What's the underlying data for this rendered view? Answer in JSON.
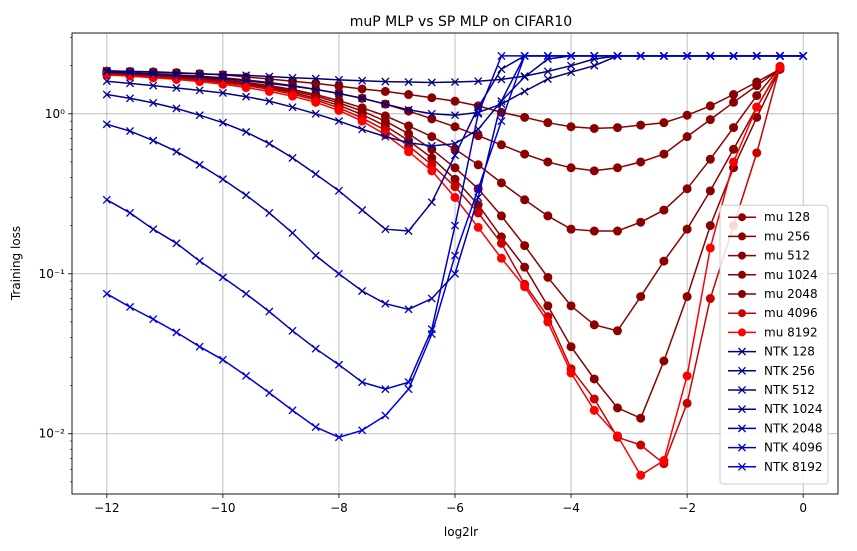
{
  "chart_data": {
    "type": "line",
    "title": "muP MLP vs SP MLP on CIFAR10",
    "xlabel": "log2lr",
    "ylabel": "Training loss",
    "xlim": [
      -12.6,
      0.6
    ],
    "ylim": [
      0.0042,
      3.2
    ],
    "yscale": "log",
    "grid": true,
    "legend_position": "lower-right",
    "xticks": [
      -12,
      -10,
      -8,
      -6,
      -4,
      -2,
      0
    ],
    "xtick_labels": [
      "−12",
      "−10",
      "−8",
      "−6",
      "−4",
      "−2",
      "0"
    ],
    "yticks": [
      0.01,
      0.1,
      1
    ],
    "ytick_labels": [
      "10⁻²",
      "10⁻¹",
      "10⁰"
    ],
    "series": [
      {
        "name": "mu 128",
        "color": "#8b0000",
        "marker": "o",
        "x": [
          -12,
          -11.6,
          -11.2,
          -10.8,
          -10.4,
          -10,
          -9.6,
          -9.2,
          -8.8,
          -8.4,
          -8,
          -7.6,
          -7.2,
          -6.8,
          -6.4,
          -6,
          -5.6,
          -5.2,
          -4.8,
          -4.4,
          -4,
          -3.6,
          -3.2,
          -2.8,
          -2.4,
          -2,
          -1.6,
          -1.2,
          -0.8,
          -0.4
        ],
        "y": [
          1.85,
          1.84,
          1.83,
          1.81,
          1.78,
          1.75,
          1.7,
          1.65,
          1.6,
          1.55,
          1.49,
          1.43,
          1.38,
          1.32,
          1.26,
          1.2,
          1.12,
          1.02,
          0.95,
          0.88,
          0.83,
          0.81,
          0.82,
          0.85,
          0.88,
          0.98,
          1.12,
          1.32,
          1.58,
          1.9
        ]
      },
      {
        "name": "mu 256",
        "color": "#8b0000",
        "marker": "o",
        "x": [
          -12,
          -11.6,
          -11.2,
          -10.8,
          -10.4,
          -10,
          -9.6,
          -9.2,
          -8.8,
          -8.4,
          -8,
          -7.6,
          -7.2,
          -6.8,
          -6.4,
          -6,
          -5.6,
          -5.2,
          -4.8,
          -4.4,
          -4,
          -3.6,
          -3.2,
          -2.8,
          -2.4,
          -2,
          -1.6,
          -1.2,
          -0.8,
          -0.4
        ],
        "y": [
          1.82,
          1.8,
          1.78,
          1.75,
          1.72,
          1.68,
          1.63,
          1.57,
          1.5,
          1.42,
          1.34,
          1.25,
          1.15,
          1.04,
          0.93,
          0.83,
          0.73,
          0.64,
          0.56,
          0.5,
          0.46,
          0.44,
          0.46,
          0.5,
          0.56,
          0.72,
          0.92,
          1.18,
          1.5,
          1.9
        ]
      },
      {
        "name": "mu 512",
        "color": "#8b0000",
        "marker": "o",
        "x": [
          -12,
          -11.6,
          -11.2,
          -10.8,
          -10.4,
          -10,
          -9.6,
          -9.2,
          -8.8,
          -8.4,
          -8,
          -7.6,
          -7.2,
          -6.8,
          -6.4,
          -6,
          -5.6,
          -5.2,
          -4.8,
          -4.4,
          -4,
          -3.6,
          -3.2,
          -2.8,
          -2.4,
          -2,
          -1.6,
          -1.2,
          -0.8,
          -0.4
        ],
        "y": [
          1.8,
          1.78,
          1.75,
          1.72,
          1.68,
          1.63,
          1.57,
          1.5,
          1.42,
          1.32,
          1.21,
          1.09,
          0.97,
          0.84,
          0.72,
          0.6,
          0.48,
          0.37,
          0.29,
          0.23,
          0.19,
          0.185,
          0.185,
          0.21,
          0.25,
          0.34,
          0.52,
          0.82,
          1.3,
          1.95
        ]
      },
      {
        "name": "mu 1024",
        "color": "#8b0000",
        "marker": "o",
        "x": [
          -12,
          -11.6,
          -11.2,
          -10.8,
          -10.4,
          -10,
          -9.6,
          -9.2,
          -8.8,
          -8.4,
          -8,
          -7.6,
          -7.2,
          -6.8,
          -6.4,
          -6,
          -5.6,
          -5.2,
          -4.8,
          -4.4,
          -4,
          -3.6,
          -3.2,
          -2.8,
          -2.4,
          -2,
          -1.6,
          -1.2,
          -0.8,
          -0.4
        ],
        "y": [
          1.79,
          1.76,
          1.73,
          1.7,
          1.66,
          1.61,
          1.55,
          1.48,
          1.39,
          1.29,
          1.17,
          1.04,
          0.9,
          0.75,
          0.6,
          0.46,
          0.34,
          0.23,
          0.15,
          0.095,
          0.063,
          0.048,
          0.044,
          0.072,
          0.12,
          0.19,
          0.33,
          0.6,
          1.1,
          1.92
        ]
      },
      {
        "name": "mu 2048",
        "color": "#8b0000",
        "marker": "o",
        "x": [
          -12,
          -11.6,
          -11.2,
          -10.8,
          -10.4,
          -10,
          -9.6,
          -9.2,
          -8.8,
          -8.4,
          -8,
          -7.6,
          -7.2,
          -6.8,
          -6.4,
          -6,
          -5.6,
          -5.2,
          -4.8,
          -4.4,
          -4,
          -3.6,
          -3.2,
          -2.8,
          -2.4,
          -2,
          -1.6,
          -1.2,
          -0.8,
          -0.4
        ],
        "y": [
          1.78,
          1.75,
          1.72,
          1.68,
          1.64,
          1.59,
          1.53,
          1.45,
          1.36,
          1.25,
          1.13,
          0.99,
          0.84,
          0.68,
          0.53,
          0.39,
          0.27,
          0.17,
          0.11,
          0.063,
          0.035,
          0.022,
          0.0145,
          0.0125,
          0.0285,
          0.072,
          0.2,
          0.46,
          0.95,
          1.9
        ]
      },
      {
        "name": "mu 4096",
        "color": "#cc0000",
        "marker": "o",
        "x": [
          -12,
          -11.6,
          -11.2,
          -10.8,
          -10.4,
          -10,
          -9.6,
          -9.2,
          -8.8,
          -8.4,
          -8,
          -7.6,
          -7.2,
          -6.8,
          -6.4,
          -6,
          -5.6,
          -5.2,
          -4.8,
          -4.4,
          -4,
          -3.6,
          -3.2,
          -2.8,
          -2.4,
          -2,
          -1.6,
          -1.2,
          -0.8,
          -0.4
        ],
        "y": [
          1.76,
          1.73,
          1.7,
          1.66,
          1.62,
          1.56,
          1.5,
          1.42,
          1.33,
          1.22,
          1.09,
          0.94,
          0.79,
          0.63,
          0.48,
          0.35,
          0.24,
          0.155,
          0.086,
          0.054,
          0.0255,
          0.0165,
          0.0095,
          0.0085,
          0.0065,
          0.0155,
          0.07,
          0.2,
          0.57,
          1.98
        ]
      },
      {
        "name": "mu 8192",
        "color": "#ff0000",
        "marker": "o",
        "x": [
          -12,
          -11.6,
          -11.2,
          -10.8,
          -10.4,
          -10,
          -9.6,
          -9.2,
          -8.8,
          -8.4,
          -8,
          -7.6,
          -7.2,
          -6.8,
          -6.4,
          -6,
          -5.6,
          -5.2,
          -4.8,
          -4.4,
          -4,
          -3.6,
          -3.2,
          -2.8,
          -2.4,
          -2,
          -1.6,
          -1.2,
          -0.8,
          -0.4
        ],
        "y": [
          1.75,
          1.72,
          1.68,
          1.64,
          1.59,
          1.53,
          1.46,
          1.38,
          1.29,
          1.18,
          1.05,
          0.9,
          0.74,
          0.58,
          0.44,
          0.3,
          0.195,
          0.125,
          0.083,
          0.05,
          0.024,
          0.014,
          0.0097,
          0.0055,
          0.0068,
          0.023,
          0.145,
          0.5,
          1.1,
          1.95
        ]
      },
      {
        "name": "NTK 128",
        "color": "#00007a",
        "marker": "x",
        "x": [
          -12,
          -11.6,
          -11.2,
          -10.8,
          -10.4,
          -10,
          -9.6,
          -9.2,
          -8.8,
          -8.4,
          -8,
          -7.6,
          -7.2,
          -6.8,
          -6.4,
          -6,
          -5.6,
          -5.2,
          -4.8,
          -4.4,
          -4,
          -3.6,
          -3.2,
          -2.8,
          -2.4,
          -2,
          -1.6,
          -1.2,
          -0.8,
          -0.4,
          0
        ],
        "y": [
          1.86,
          1.84,
          1.82,
          1.8,
          1.78,
          1.76,
          1.74,
          1.71,
          1.68,
          1.66,
          1.63,
          1.61,
          1.59,
          1.58,
          1.57,
          1.58,
          1.6,
          1.64,
          1.72,
          1.84,
          2.0,
          2.2,
          2.3,
          2.3,
          2.3,
          2.3,
          2.3,
          2.3,
          2.3,
          2.3,
          2.3
        ]
      },
      {
        "name": "NTK 256",
        "color": "#00007a",
        "marker": "x",
        "x": [
          -12,
          -11.6,
          -11.2,
          -10.8,
          -10.4,
          -10,
          -9.6,
          -9.2,
          -8.8,
          -8.4,
          -8,
          -7.6,
          -7.2,
          -6.8,
          -6.4,
          -6,
          -5.6,
          -5.2,
          -4.8,
          -4.4,
          -4,
          -3.6,
          -3.2,
          -2.8,
          -2.4,
          -2,
          -1.6,
          -1.2,
          -0.8,
          -0.4,
          0
        ],
        "y": [
          1.83,
          1.8,
          1.77,
          1.73,
          1.7,
          1.66,
          1.61,
          1.55,
          1.49,
          1.42,
          1.34,
          1.25,
          1.15,
          1.06,
          1.0,
          0.98,
          1.02,
          1.15,
          1.38,
          1.65,
          1.82,
          2.0,
          2.3,
          2.3,
          2.3,
          2.3,
          2.3,
          2.3,
          2.3,
          2.3,
          2.3
        ]
      },
      {
        "name": "NTK 512",
        "color": "#00008b",
        "marker": "x",
        "x": [
          -12,
          -11.6,
          -11.2,
          -10.8,
          -10.4,
          -10,
          -9.6,
          -9.2,
          -8.8,
          -8.4,
          -8,
          -7.6,
          -7.2,
          -6.8,
          -6.4,
          -6,
          -5.6,
          -5.2,
          -4.8,
          -4.4,
          -4,
          -3.6,
          -3.2,
          -2.8,
          -2.4,
          -2,
          -1.6,
          -1.2,
          -0.8,
          -0.4,
          0
        ],
        "y": [
          1.6,
          1.55,
          1.5,
          1.45,
          1.4,
          1.35,
          1.28,
          1.2,
          1.1,
          1.0,
          0.9,
          0.8,
          0.72,
          0.66,
          0.63,
          0.65,
          0.8,
          1.2,
          1.7,
          2.2,
          2.3,
          2.3,
          2.3,
          2.3,
          2.3,
          2.3,
          2.3,
          2.3,
          2.3,
          2.3,
          2.3
        ]
      },
      {
        "name": "NTK 1024",
        "color": "#000099",
        "marker": "x",
        "x": [
          -12,
          -11.6,
          -11.2,
          -10.8,
          -10.4,
          -10,
          -9.6,
          -9.2,
          -8.8,
          -8.4,
          -8,
          -7.6,
          -7.2,
          -6.8,
          -6.4,
          -6,
          -5.6,
          -5.2,
          -4.8,
          -4.4,
          -4,
          -3.6,
          -3.2,
          -2.8,
          -2.4,
          -2,
          -1.6,
          -1.2,
          -0.8,
          -0.4,
          0
        ],
        "y": [
          1.32,
          1.25,
          1.17,
          1.08,
          0.98,
          0.88,
          0.77,
          0.65,
          0.53,
          0.42,
          0.33,
          0.25,
          0.19,
          0.185,
          0.28,
          0.55,
          1.1,
          1.9,
          2.3,
          2.3,
          2.3,
          2.3,
          2.3,
          2.3,
          2.3,
          2.3,
          2.3,
          2.3,
          2.3,
          2.3,
          2.3
        ]
      },
      {
        "name": "NTK 2048",
        "color": "#0000aa",
        "marker": "x",
        "x": [
          -12,
          -11.6,
          -11.2,
          -10.8,
          -10.4,
          -10,
          -9.6,
          -9.2,
          -8.8,
          -8.4,
          -8,
          -7.6,
          -7.2,
          -6.8,
          -6.4,
          -6,
          -5.6,
          -5.2,
          -4.8,
          -4.4,
          -4,
          -3.6,
          -3.2,
          -2.8,
          -2.4,
          -2,
          -1.6,
          -1.2,
          -0.8,
          -0.4,
          0
        ],
        "y": [
          0.86,
          0.78,
          0.68,
          0.58,
          0.48,
          0.39,
          0.31,
          0.24,
          0.18,
          0.13,
          0.1,
          0.078,
          0.065,
          0.06,
          0.07,
          0.1,
          0.3,
          1.2,
          2.3,
          2.3,
          2.3,
          2.3,
          2.3,
          2.3,
          2.3,
          2.3,
          2.3,
          2.3,
          2.3,
          2.3,
          2.3
        ]
      },
      {
        "name": "NTK 4096",
        "color": "#0000bb",
        "marker": "x",
        "x": [
          -12,
          -11.6,
          -11.2,
          -10.8,
          -10.4,
          -10,
          -9.6,
          -9.2,
          -8.8,
          -8.4,
          -8,
          -7.6,
          -7.2,
          -6.8,
          -6.4,
          -6,
          -5.6,
          -5.2,
          -4.8,
          -4.4,
          -4,
          -3.6,
          -3.2,
          -2.8,
          -2.4,
          -2,
          -1.6,
          -1.2,
          -0.8,
          -0.4,
          0
        ],
        "y": [
          0.29,
          0.24,
          0.19,
          0.155,
          0.12,
          0.095,
          0.075,
          0.058,
          0.044,
          0.034,
          0.027,
          0.021,
          0.019,
          0.021,
          0.045,
          0.2,
          1.0,
          2.3,
          2.3,
          2.3,
          2.3,
          2.3,
          2.3,
          2.3,
          2.3,
          2.3,
          2.3,
          2.3,
          2.3,
          2.3,
          2.3
        ]
      },
      {
        "name": "NTK 8192",
        "color": "#0000dd",
        "marker": "x",
        "x": [
          -12,
          -11.6,
          -11.2,
          -10.8,
          -10.4,
          -10,
          -9.6,
          -9.2,
          -8.8,
          -8.4,
          -8,
          -7.6,
          -7.2,
          -6.8,
          -6.4,
          -6,
          -5.6,
          -5.2,
          -4.8,
          -4.4,
          -4,
          -3.6,
          -3.2,
          -2.8,
          -2.4,
          -2,
          -1.6,
          -1.2,
          -0.8,
          -0.4,
          0
        ],
        "y": [
          0.075,
          0.062,
          0.052,
          0.043,
          0.035,
          0.029,
          0.023,
          0.018,
          0.014,
          0.011,
          0.0095,
          0.0105,
          0.013,
          0.019,
          0.042,
          0.13,
          0.34,
          0.9,
          2.3,
          2.3,
          2.3,
          2.3,
          2.3,
          2.3,
          2.3,
          2.3,
          2.3,
          2.3,
          2.3,
          2.3,
          2.3
        ]
      }
    ]
  }
}
